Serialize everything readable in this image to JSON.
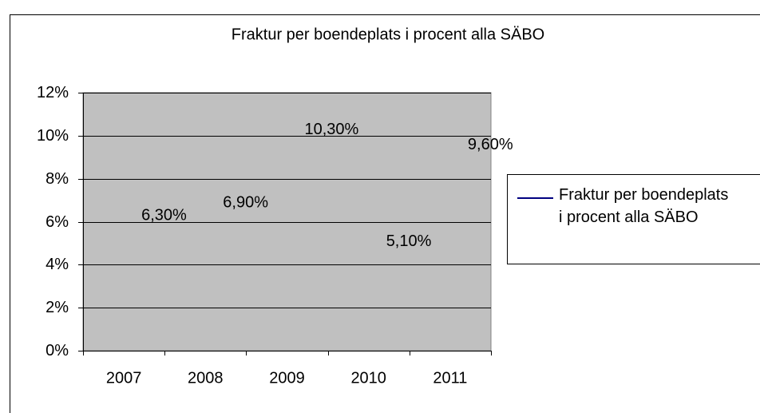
{
  "chart_data": {
    "type": "line",
    "title": "Fraktur per boendeplats i procent alla SÄBO",
    "categories": [
      "2007",
      "2008",
      "2009",
      "2010",
      "2011"
    ],
    "series": [
      {
        "name": "Fraktur per boendeplats i procent alla SÄBO",
        "color": "#000080",
        "values": [
          6.3,
          6.9,
          10.3,
          5.1,
          9.6
        ],
        "value_labels": [
          "6,30%",
          "6,90%",
          "10,30%",
          "5,10%",
          "9,60%"
        ]
      }
    ],
    "ylim": [
      0,
      12
    ],
    "yticks": [
      {
        "value": 0,
        "label": "0%"
      },
      {
        "value": 2,
        "label": "2%"
      },
      {
        "value": 4,
        "label": "4%"
      },
      {
        "value": 6,
        "label": "6%"
      },
      {
        "value": 8,
        "label": "8%"
      },
      {
        "value": 10,
        "label": "10%"
      },
      {
        "value": 12,
        "label": "12%"
      }
    ],
    "grid": true,
    "legend": "right",
    "plot_background": "#c0c0c0"
  }
}
